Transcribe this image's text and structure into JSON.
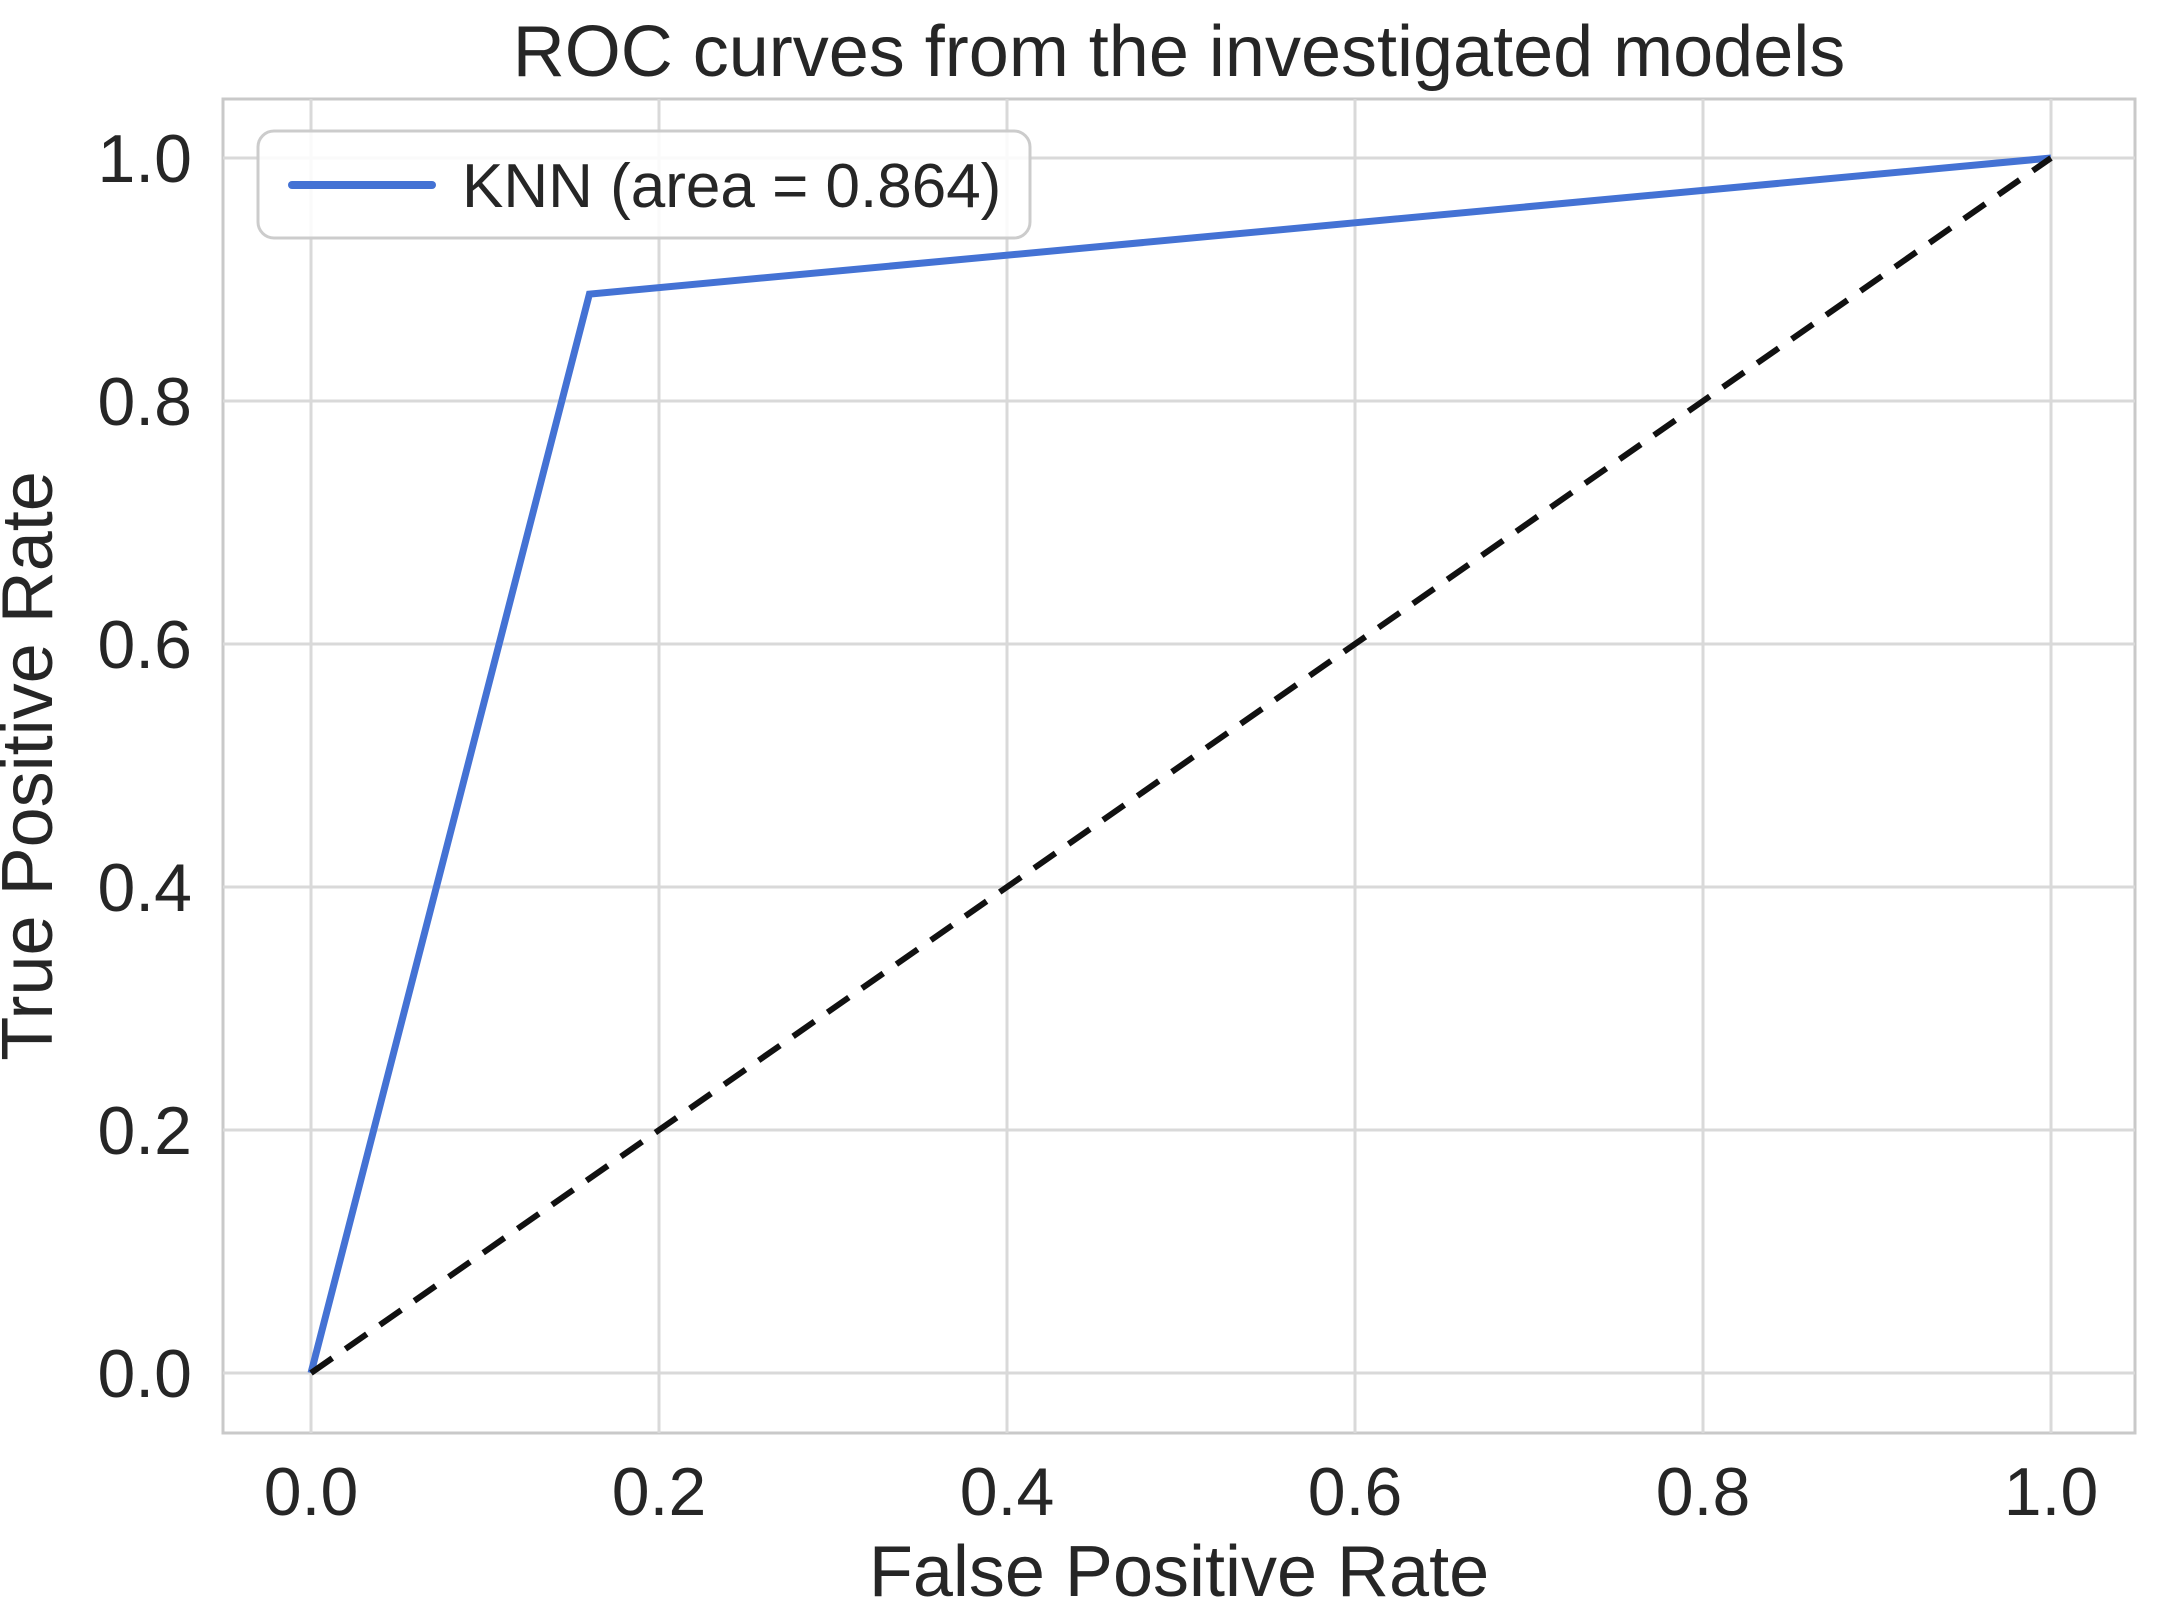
{
  "chart_data": {
    "type": "line",
    "title": "ROC curves from the investigated models",
    "xlabel": "False Positive Rate",
    "ylabel": "True Positive Rate",
    "xlim": [
      -0.05,
      1.05
    ],
    "ylim": [
      -0.05,
      1.05
    ],
    "grid": true,
    "legend_position": "upper left",
    "xticks": {
      "values": [
        0.0,
        0.2,
        0.4,
        0.6,
        0.8,
        1.0
      ],
      "labels": [
        "0.0",
        "0.2",
        "0.4",
        "0.6",
        "0.8",
        "1.0"
      ]
    },
    "yticks": {
      "values": [
        0.0,
        0.2,
        0.4,
        0.6,
        0.8,
        1.0
      ],
      "labels": [
        "0.0",
        "0.2",
        "0.4",
        "0.6",
        "0.8",
        "1.0"
      ]
    },
    "series": [
      {
        "name": "KNN (area = 0.864)",
        "model": "KNN",
        "auc": 0.864,
        "color": "#4472d4",
        "line_style": "solid",
        "line_width": 7,
        "in_legend": true,
        "points": [
          [
            0.0,
            0.0
          ],
          [
            0.16,
            0.888
          ],
          [
            1.0,
            1.0
          ]
        ]
      },
      {
        "name": "chance-diagonal",
        "color": "#111111",
        "line_style": "dashed",
        "line_width": 6,
        "in_legend": false,
        "points": [
          [
            0.0,
            0.0
          ],
          [
            1.0,
            1.0
          ]
        ]
      }
    ]
  },
  "colors": {
    "accent_blue": "#4472d4",
    "dashed_black": "#111111",
    "grid": "#d9d9d9",
    "spine": "#c9c9c9",
    "text": "#262626",
    "background": "#ffffff",
    "legend_border": "#cccccc"
  }
}
